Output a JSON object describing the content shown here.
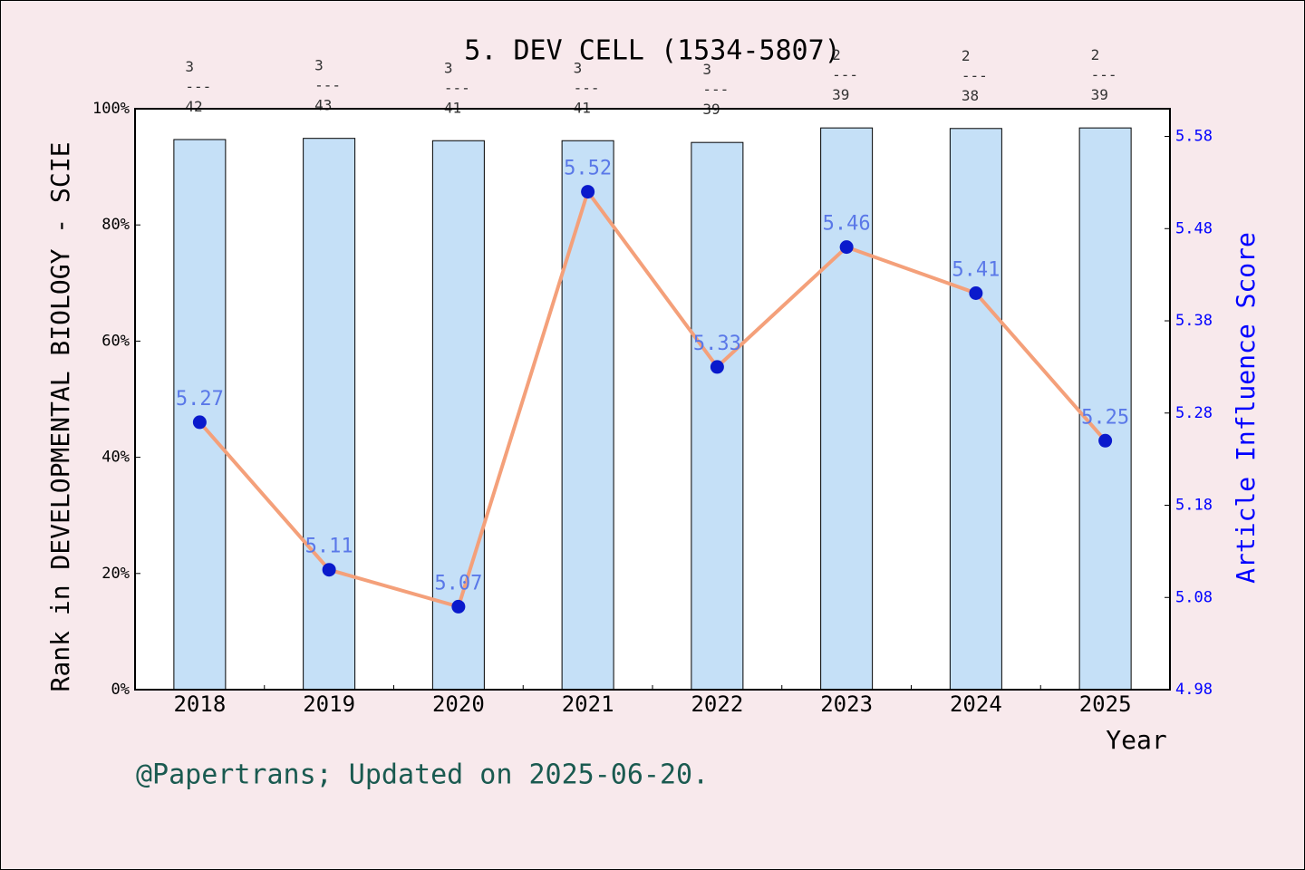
{
  "chart_data": {
    "type": "bar_line",
    "title": "5. DEV CELL (1534-5807)",
    "x_label": "Year",
    "y_label": "Rank in DEVELOPMENTAL BIOLOGY - SCIE",
    "y2_label": "Article Influence Score",
    "footer": "@Papertrans; Updated on 2025-06-20.",
    "categories": [
      "2018",
      "2019",
      "2020",
      "2021",
      "2022",
      "2023",
      "2024",
      "2025"
    ],
    "series": [
      {
        "type": "bar",
        "color": "#c5e0f7",
        "values": [
          94.7,
          94.9,
          94.5,
          94.5,
          94.2,
          96.7,
          96.6,
          96.7
        ],
        "value_labels": [
          "3\n---\n42",
          "3\n---\n43",
          "3\n---\n41",
          "3\n---\n41",
          "3\n---\n39",
          "2\n---\n39",
          "2\n---\n38",
          "2\n---\n39"
        ]
      },
      {
        "type": "line",
        "axis": "y2",
        "color": "#f4a07a",
        "marker_color": "#0a1acc",
        "label_color": "#5a78e8",
        "values": [
          5.27,
          5.11,
          5.07,
          5.52,
          5.33,
          5.46,
          5.41,
          5.25
        ]
      }
    ],
    "ylim": [
      0,
      100
    ],
    "yticks": [
      {
        "value": 0,
        "label": "0%"
      },
      {
        "value": 20,
        "label": "20%"
      },
      {
        "value": 40,
        "label": "40%"
      },
      {
        "value": 60,
        "label": "60%"
      },
      {
        "value": 80,
        "label": "80%"
      },
      {
        "value": 100,
        "label": "100%"
      }
    ],
    "y2lim": [
      4.98,
      5.61
    ],
    "y2ticks": [
      4.98,
      5.08,
      5.18,
      5.28,
      5.38,
      5.48,
      5.58
    ]
  }
}
